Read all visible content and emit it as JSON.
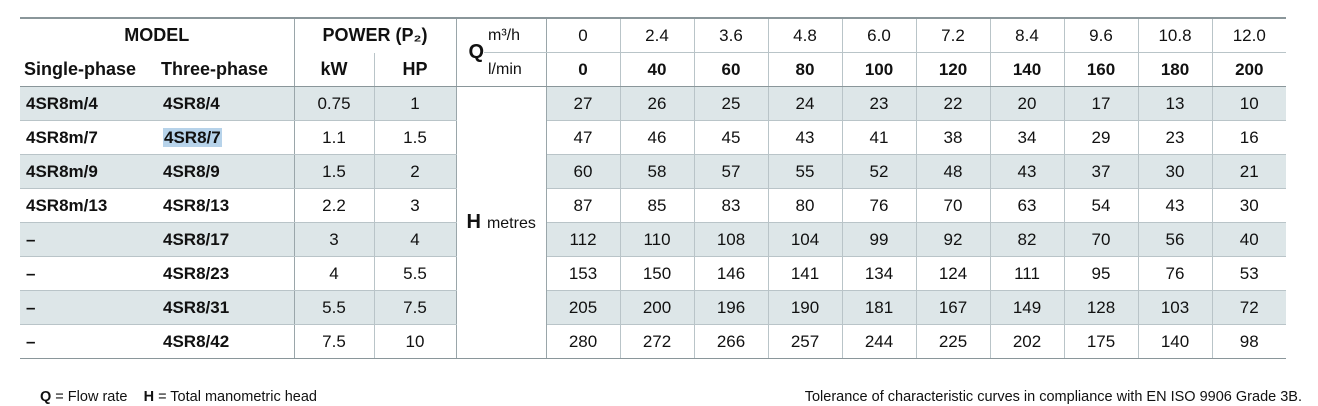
{
  "header": {
    "model": "MODEL",
    "power": "POWER (P₂)",
    "single_phase": "Single-phase",
    "three_phase": "Three-phase",
    "kw": "kW",
    "hp": "HP",
    "q_symbol": "Q",
    "q_unit_m3": "m³/h",
    "q_unit_lmin": "l/min",
    "h_symbol": "H",
    "h_unit": "metres"
  },
  "flow_m3h": [
    "0",
    "2.4",
    "3.6",
    "4.8",
    "6.0",
    "7.2",
    "8.4",
    "9.6",
    "10.8",
    "12.0"
  ],
  "flow_lmin": [
    "0",
    "40",
    "60",
    "80",
    "100",
    "120",
    "140",
    "160",
    "180",
    "200"
  ],
  "rows": [
    {
      "single": "4SR8m/4",
      "three": "4SR8/4",
      "kw": "0.75",
      "hp": "1",
      "heads": [
        "27",
        "26",
        "25",
        "24",
        "23",
        "22",
        "20",
        "17",
        "13",
        "10"
      ]
    },
    {
      "single": "4SR8m/7",
      "three": "4SR8/7",
      "kw": "1.1",
      "hp": "1.5",
      "heads": [
        "47",
        "46",
        "45",
        "43",
        "41",
        "38",
        "34",
        "29",
        "23",
        "16"
      ]
    },
    {
      "single": "4SR8m/9",
      "three": "4SR8/9",
      "kw": "1.5",
      "hp": "2",
      "heads": [
        "60",
        "58",
        "57",
        "55",
        "52",
        "48",
        "43",
        "37",
        "30",
        "21"
      ]
    },
    {
      "single": "4SR8m/13",
      "three": "4SR8/13",
      "kw": "2.2",
      "hp": "3",
      "heads": [
        "87",
        "85",
        "83",
        "80",
        "76",
        "70",
        "63",
        "54",
        "43",
        "30"
      ]
    },
    {
      "single": "–",
      "three": "4SR8/17",
      "kw": "3",
      "hp": "4",
      "heads": [
        "112",
        "110",
        "108",
        "104",
        "99",
        "92",
        "82",
        "70",
        "56",
        "40"
      ]
    },
    {
      "single": "–",
      "three": "4SR8/23",
      "kw": "4",
      "hp": "5.5",
      "heads": [
        "153",
        "150",
        "146",
        "141",
        "134",
        "124",
        "111",
        "95",
        "76",
        "53"
      ]
    },
    {
      "single": "–",
      "three": "4SR8/31",
      "kw": "5.5",
      "hp": "7.5",
      "heads": [
        "205",
        "200",
        "196",
        "190",
        "181",
        "167",
        "149",
        "128",
        "103",
        "72"
      ]
    },
    {
      "single": "–",
      "three": "4SR8/42",
      "kw": "7.5",
      "hp": "10",
      "heads": [
        "280",
        "272",
        "266",
        "257",
        "244",
        "225",
        "202",
        "175",
        "140",
        "98"
      ]
    }
  ],
  "footer": {
    "q_symbol": "Q",
    "q_text": " = Flow rate",
    "h_symbol": "H",
    "h_text": " = Total manometric head",
    "tolerance": "Tolerance of characteristic curves in compliance with EN ISO 9906 Grade 3B."
  },
  "colors": {
    "shade": "#dde6e8",
    "selection": "#b7d3ea"
  }
}
